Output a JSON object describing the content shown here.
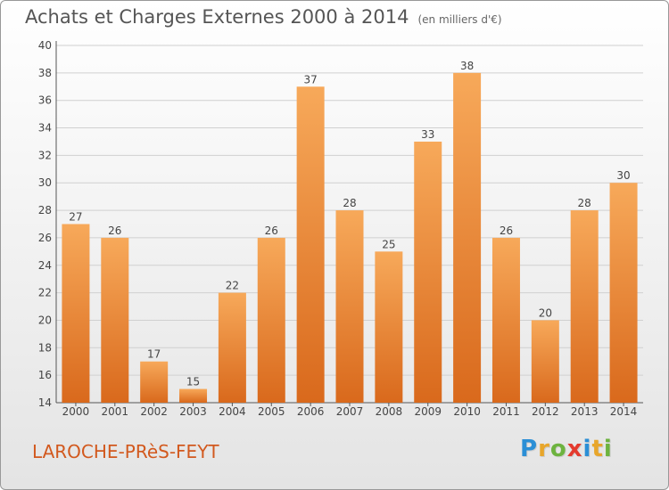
{
  "header": {
    "title": "Achats et Charges Externes 2000 à 2014",
    "subtitle": "(en milliers d'€)"
  },
  "footer": {
    "commune": "LAROCHE-PRèS-FEYT",
    "logo_letters": [
      "P",
      "r",
      "o",
      "x",
      "i",
      "t",
      "i"
    ],
    "logo_colors": [
      "#2b8fd6",
      "#e8a62b",
      "#6db33f",
      "#e43a2e",
      "#2b8fd6",
      "#e8a62b",
      "#6db33f"
    ]
  },
  "chart_data": {
    "type": "bar",
    "categories": [
      "2000",
      "2001",
      "2002",
      "2003",
      "2004",
      "2005",
      "2006",
      "2007",
      "2008",
      "2009",
      "2010",
      "2011",
      "2012",
      "2013",
      "2014"
    ],
    "values": [
      27,
      26,
      17,
      15,
      22,
      26,
      37,
      28,
      25,
      33,
      38,
      26,
      20,
      28,
      30
    ],
    "ylim": [
      14,
      40
    ],
    "yticks": [
      14,
      16,
      18,
      20,
      22,
      24,
      26,
      28,
      30,
      32,
      34,
      36,
      38,
      40
    ],
    "grid": true,
    "bar_color_top": "#f7a95a",
    "bar_color_bottom": "#d9691c"
  }
}
